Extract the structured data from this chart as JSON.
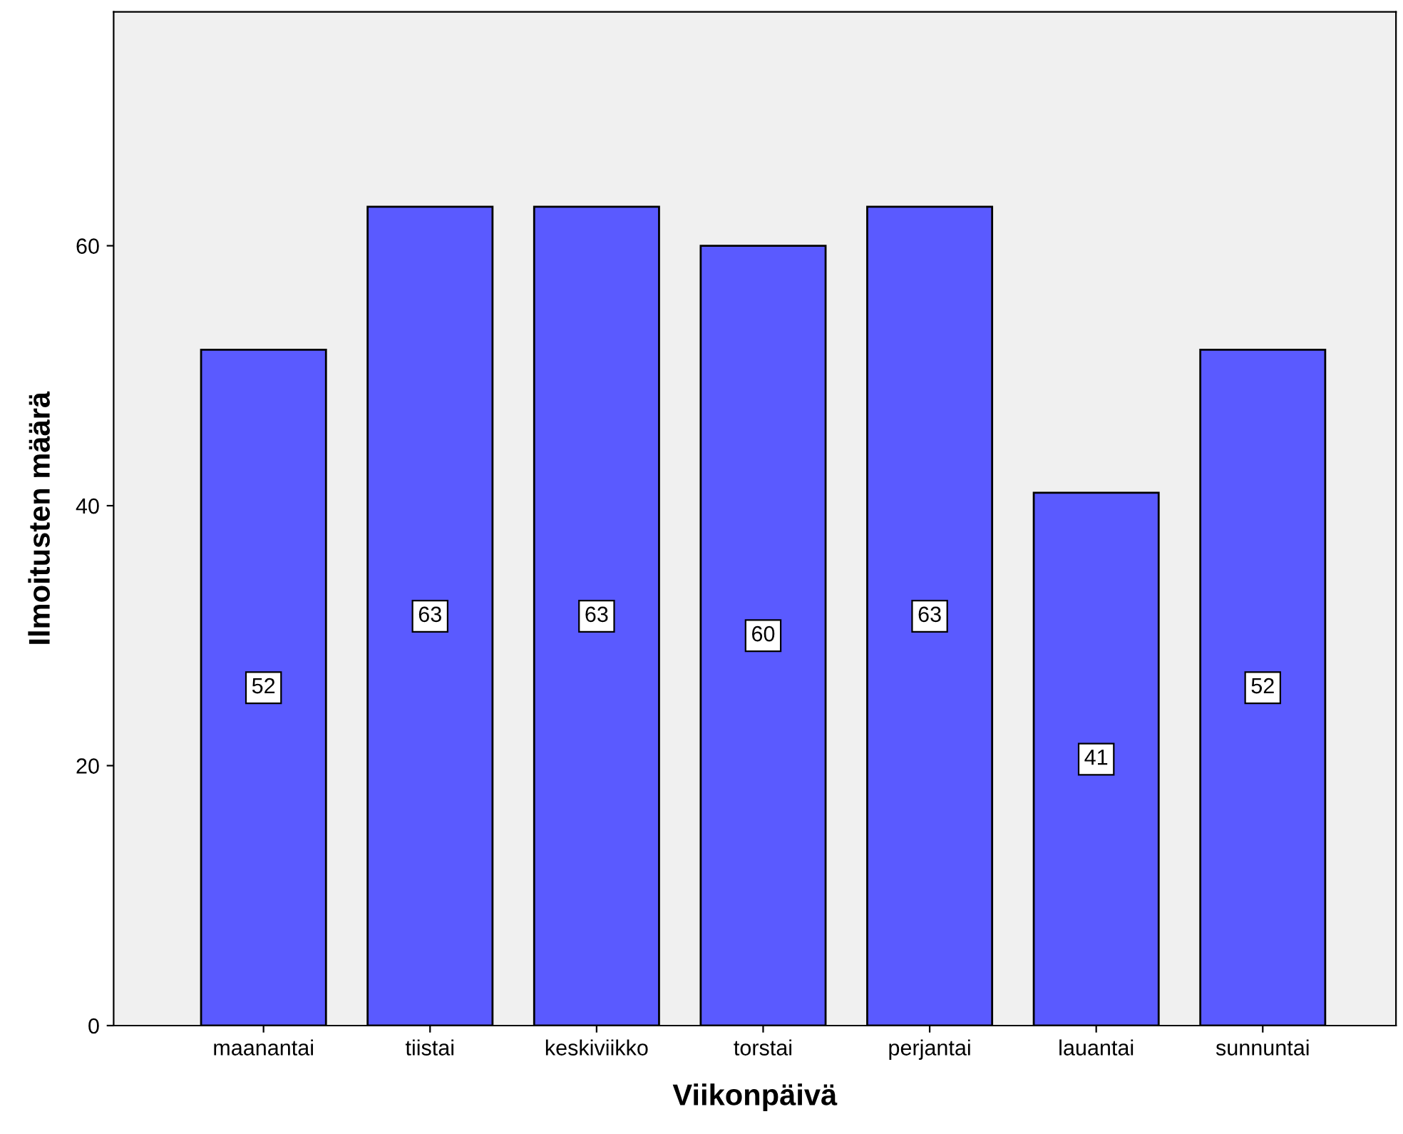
{
  "chart_data": {
    "type": "bar",
    "xlabel": "Viikonpäivä",
    "ylabel": "Ilmoitusten määrä",
    "categories": [
      "maanantai",
      "tiistai",
      "keskiviikko",
      "torstai",
      "perjantai",
      "lauantai",
      "sunnuntai"
    ],
    "values": [
      52,
      63,
      63,
      60,
      63,
      41,
      52
    ],
    "color": "#5a5aff",
    "ylim": [
      0,
      78
    ],
    "yticks": [
      0,
      20,
      40,
      60
    ],
    "data_labels": true,
    "grid": false,
    "legend": false
  }
}
